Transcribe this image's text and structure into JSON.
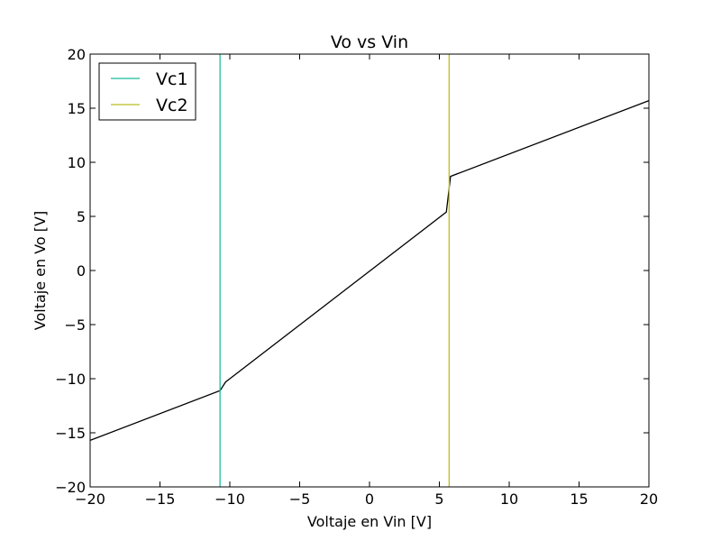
{
  "chart_data": {
    "type": "line",
    "title": "Vo vs Vin",
    "xlabel": "Voltaje en Vin [V]",
    "ylabel": "Voltaje en Vo [V]",
    "xlim": [
      -20,
      20
    ],
    "ylim": [
      -20,
      20
    ],
    "xticks": [
      -20,
      -15,
      -10,
      -5,
      0,
      5,
      10,
      15,
      20
    ],
    "yticks": [
      -20,
      -15,
      -10,
      -5,
      0,
      5,
      10,
      15,
      20
    ],
    "grid": false,
    "legend_position": "top-left",
    "series": [
      {
        "kind": "curve",
        "color": "#000000",
        "x": [
          -20,
          -10.7,
          -10.3,
          5.5,
          5.8,
          20
        ],
        "y": [
          -15.7,
          -11.1,
          -10.3,
          5.4,
          8.7,
          15.7
        ]
      },
      {
        "name": "Vc1",
        "kind": "vline",
        "color": "#1abc9c",
        "x": -10.7
      },
      {
        "name": "Vc2",
        "kind": "vline",
        "color": "#bcbd22",
        "x": 5.7
      }
    ]
  }
}
